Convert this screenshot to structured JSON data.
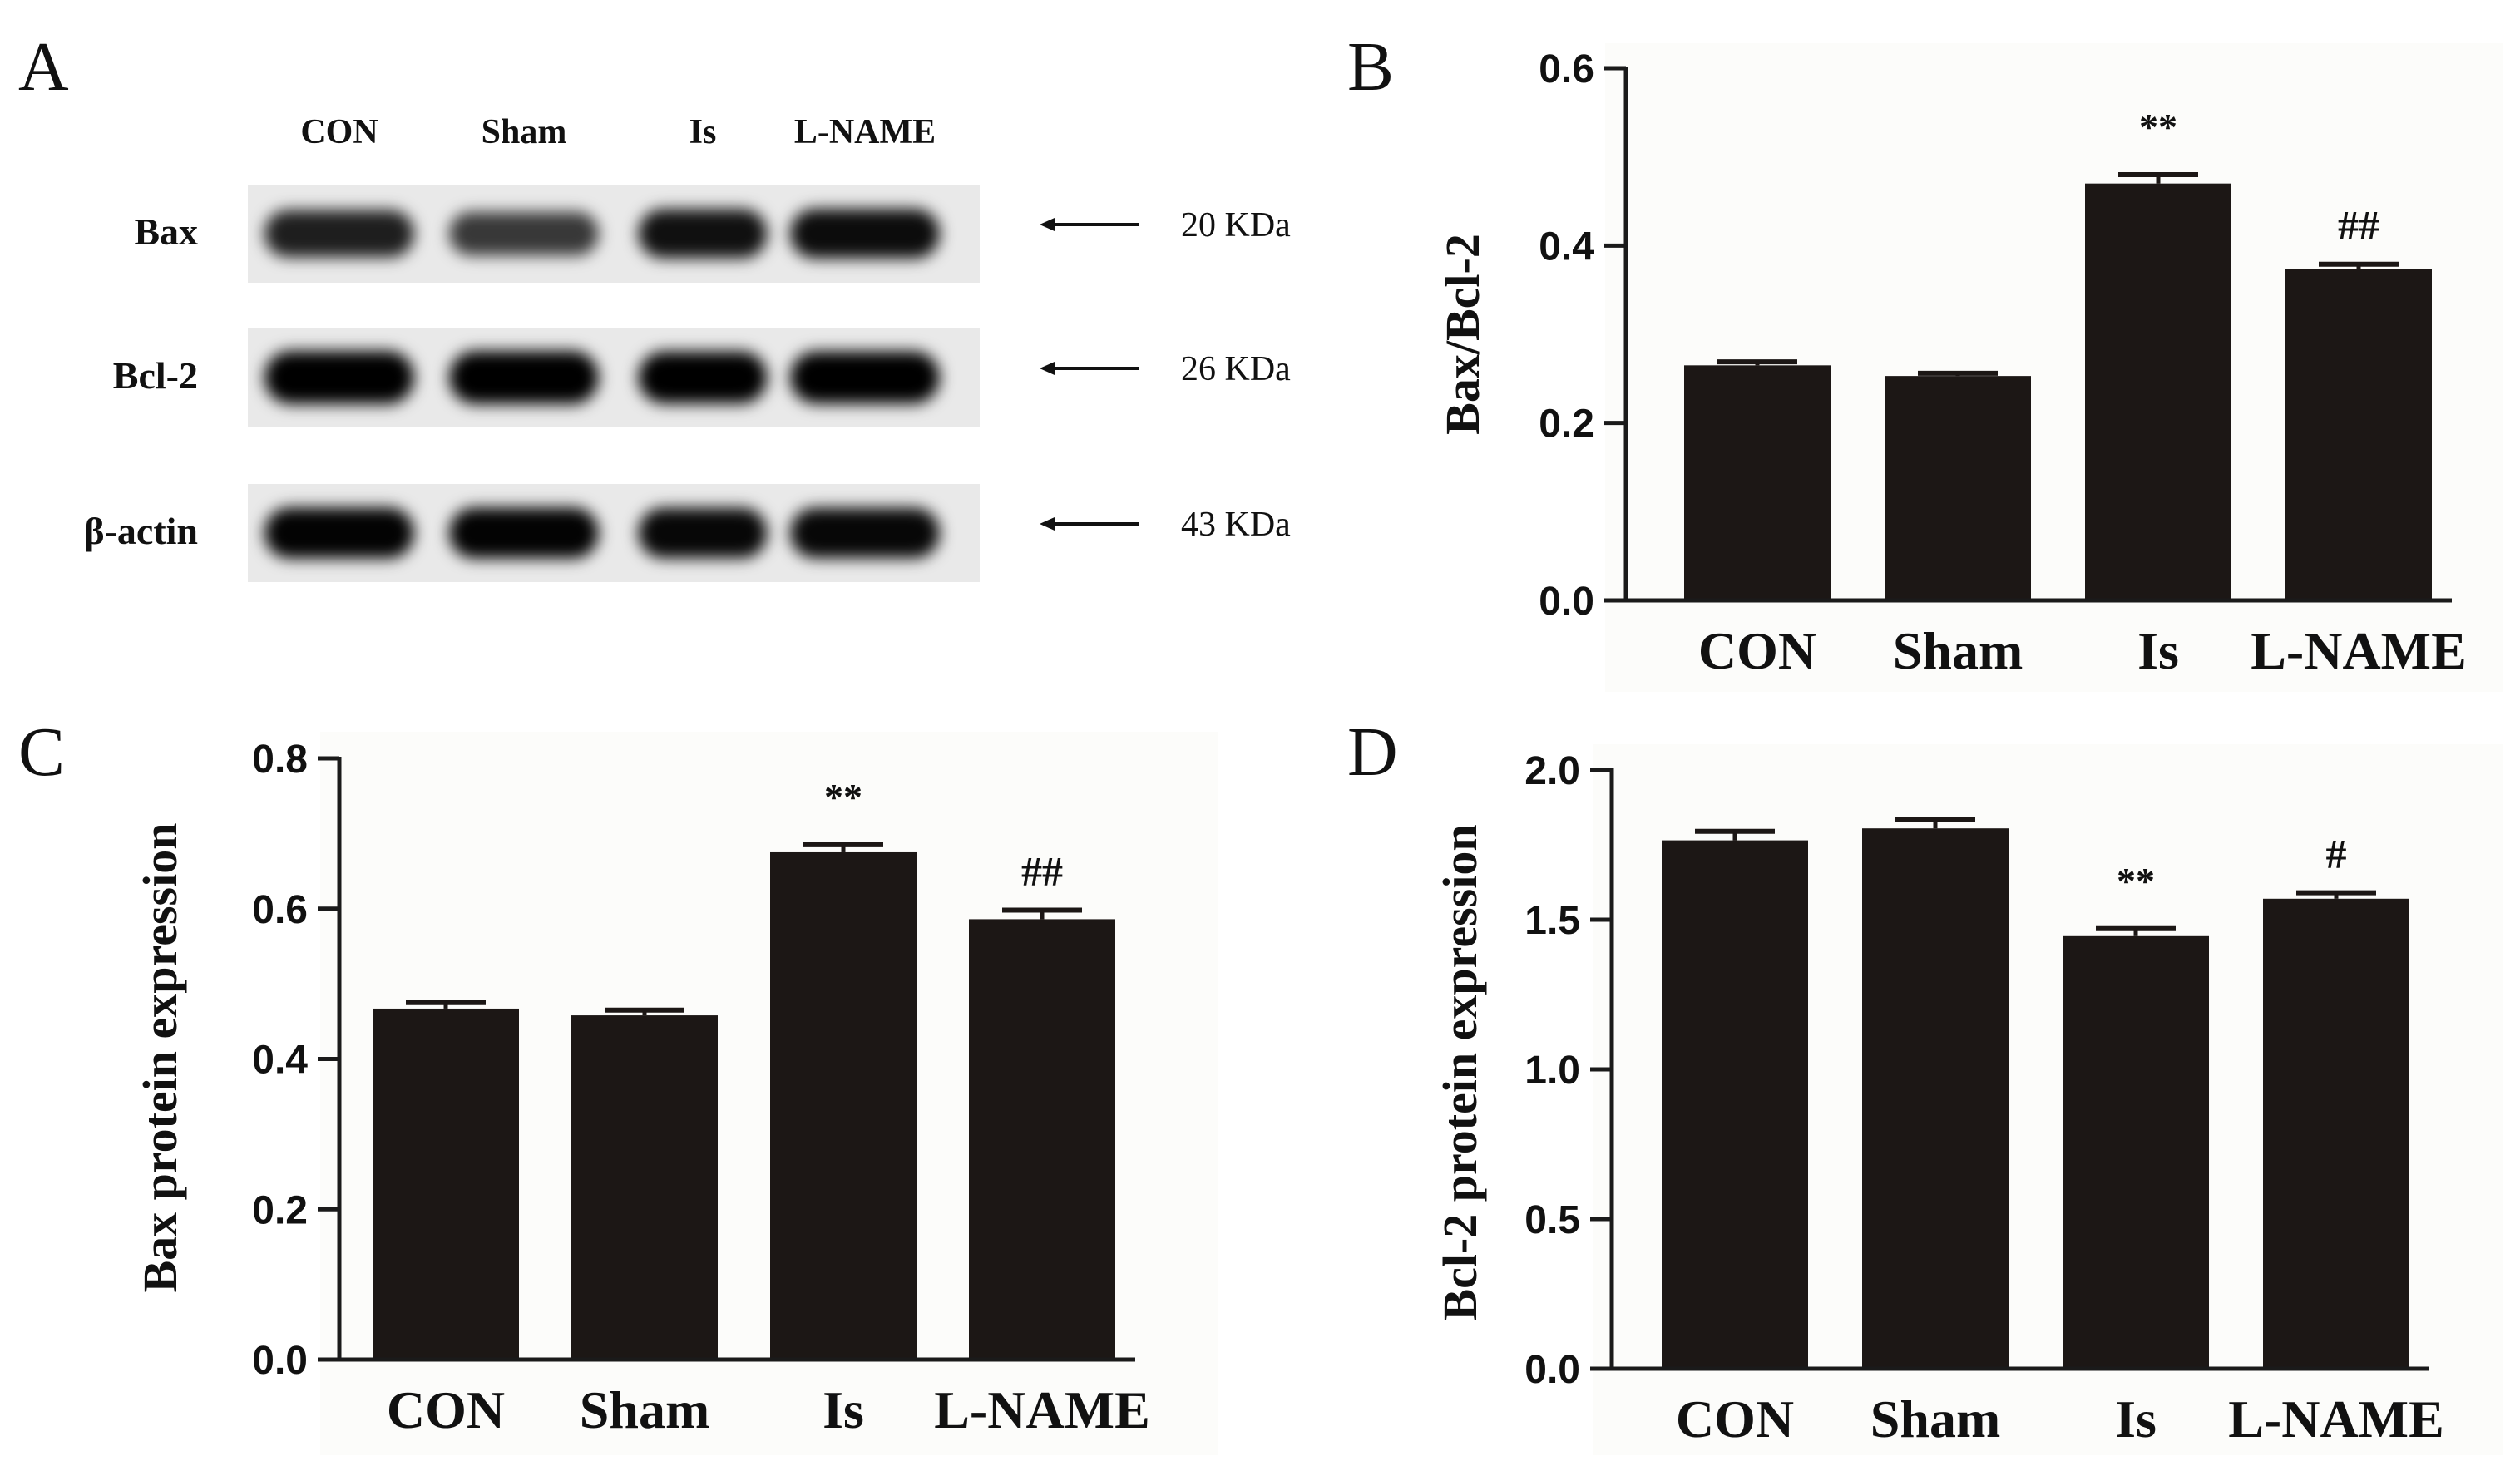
{
  "panel_a": {
    "letter": "A",
    "lanes": [
      "CON",
      "Sham",
      "Is",
      "L-NAME"
    ],
    "rows": [
      {
        "label": "Bax",
        "kda": "20 KDa",
        "intensity": [
          0.78,
          0.64,
          0.85,
          0.87
        ]
      },
      {
        "label": "Bcl-2",
        "kda": "26 KDa",
        "intensity": [
          1.0,
          1.0,
          0.96,
          0.97
        ]
      },
      {
        "label": "β-actin",
        "kda": "43 KDa",
        "intensity": [
          0.92,
          0.92,
          0.9,
          0.9
        ]
      }
    ]
  },
  "chart_data": [
    {
      "panel": "B",
      "type": "bar",
      "categories": [
        "CON",
        "Sham",
        "Is",
        "L-NAME"
      ],
      "values": [
        0.265,
        0.253,
        0.47,
        0.374
      ],
      "errors": [
        0.004,
        0.003,
        0.01,
        0.005
      ],
      "annotations": [
        "",
        "",
        "**",
        "##"
      ],
      "ylabel": "Bax/Bcl-2",
      "ylim": [
        0,
        0.6
      ],
      "yticks": [
        "0.0",
        "0.2",
        "0.4",
        "0.6"
      ]
    },
    {
      "panel": "C",
      "type": "bar",
      "categories": [
        "CON",
        "Sham",
        "Is",
        "L-NAME"
      ],
      "values": [
        0.467,
        0.458,
        0.675,
        0.586
      ],
      "errors": [
        0.008,
        0.007,
        0.01,
        0.012
      ],
      "annotations": [
        "",
        "",
        "**",
        "##"
      ],
      "ylabel": "Bax protein expression",
      "ylim": [
        0,
        0.8
      ],
      "yticks": [
        "0.0",
        "0.2",
        "0.4",
        "0.6",
        "0.8"
      ]
    },
    {
      "panel": "D",
      "type": "bar",
      "categories": [
        "CON",
        "Sham",
        "Is",
        "L-NAME"
      ],
      "values": [
        1.765,
        1.805,
        1.445,
        1.57
      ],
      "errors": [
        0.03,
        0.03,
        0.025,
        0.02
      ],
      "annotations": [
        "",
        "",
        "**",
        "#"
      ],
      "ylabel": "Bcl-2 protein expression",
      "ylim": [
        0,
        2.0
      ],
      "yticks": [
        "0.0",
        "0.5",
        "1.0",
        "1.5",
        "2.0"
      ]
    }
  ],
  "colors": {
    "bar": "#1c1715",
    "axis": "#1a1a1a",
    "text": "#111111",
    "panel_bg": "#fcfcfa",
    "blot_bg": "#e9e9e9"
  }
}
